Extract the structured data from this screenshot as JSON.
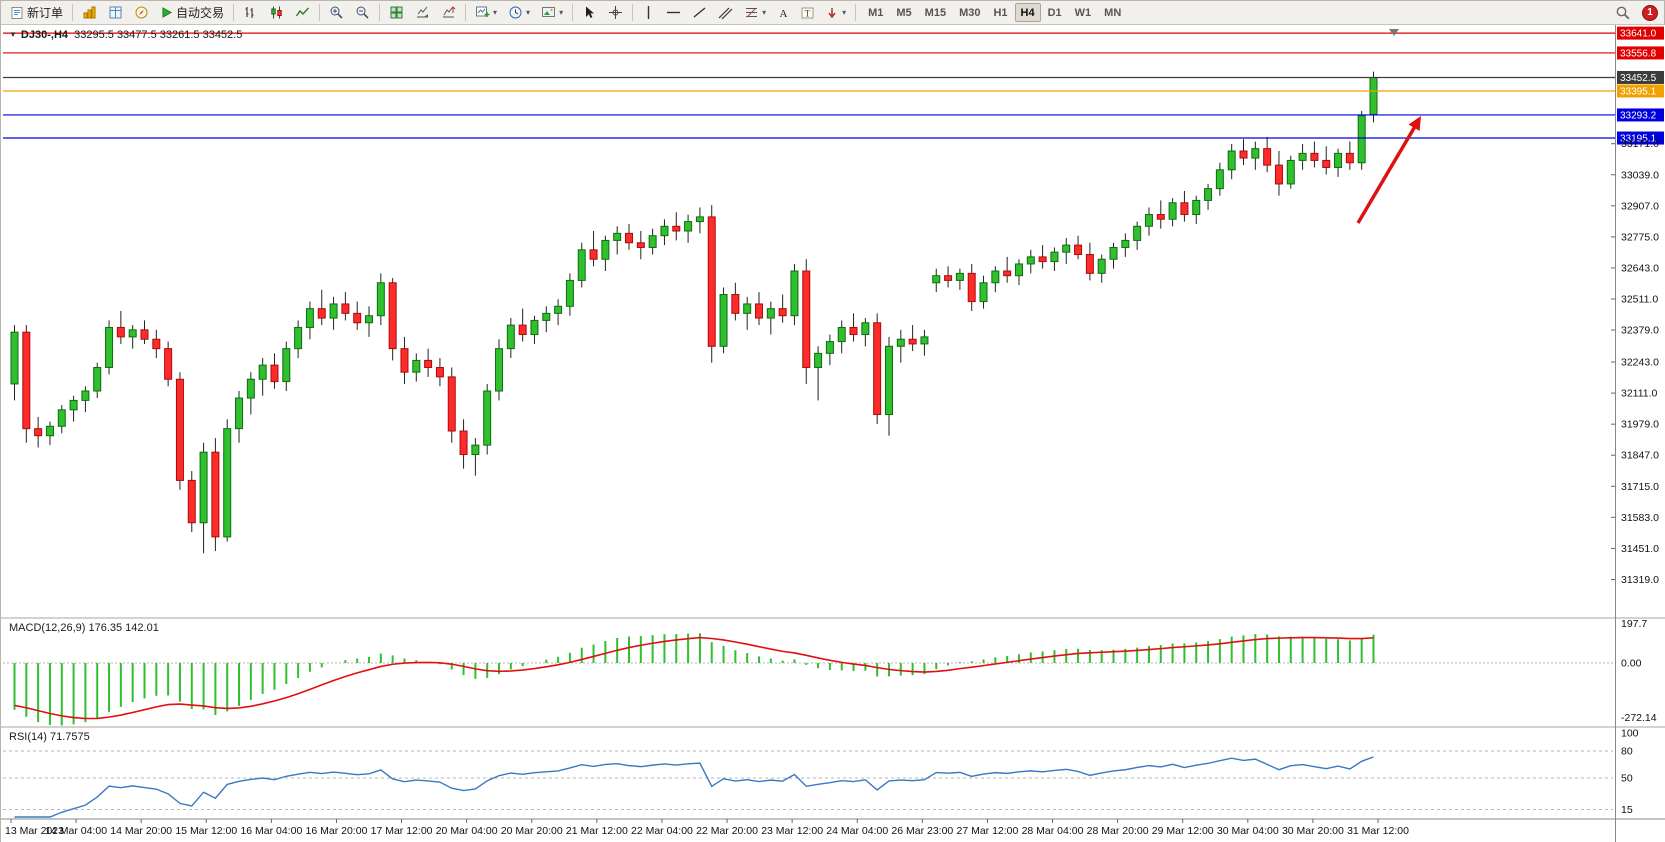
{
  "toolbar": {
    "new_order": "新订单",
    "autotrading": "自动交易",
    "timeframes": [
      "M1",
      "M5",
      "M15",
      "M30",
      "H1",
      "H4",
      "D1",
      "W1",
      "MN"
    ],
    "active_timeframe": "H4",
    "notification_count": "1"
  },
  "chart": {
    "symbol_period": "DJ30-,H4",
    "ohlc": "33295.5 33477.5 33261.5 33452.5",
    "price_axis_ticks": [
      "33171.0",
      "33039.0",
      "32907.0",
      "32775.0",
      "32643.0",
      "32511.0",
      "32379.0",
      "32243.0",
      "32111.0",
      "31979.0",
      "31847.0",
      "31715.0",
      "31583.0",
      "31451.0",
      "31319.0"
    ],
    "levels": [
      {
        "price": 33641.0,
        "label": "33641.0",
        "color": "#e00000",
        "kind": "resistance-line"
      },
      {
        "price": 33556.8,
        "label": "33556.8",
        "color": "#e00000",
        "kind": "resistance-line"
      },
      {
        "price": 33452.5,
        "label": "33452.5",
        "color": "#3c3c3c",
        "kind": "bid-line"
      },
      {
        "price": 33395.1,
        "label": "33395.1",
        "color": "#f0a000",
        "kind": "horizontal-line"
      },
      {
        "price": 33293.2,
        "label": "33293.2",
        "color": "#0000dd",
        "kind": "horizontal-line"
      },
      {
        "price": 33195.1,
        "label": "33195.1",
        "color": "#0000dd",
        "kind": "horizontal-line"
      }
    ],
    "time_axis": [
      "13 Mar 2023",
      "14 Mar 04:00",
      "14 Mar 20:00",
      "15 Mar 12:00",
      "16 Mar 04:00",
      "16 Mar 20:00",
      "17 Mar 12:00",
      "20 Mar 04:00",
      "20 Mar 20:00",
      "21 Mar 12:00",
      "22 Mar 04:00",
      "22 Mar 20:00",
      "23 Mar 12:00",
      "24 Mar 04:00",
      "26 Mar 23:00",
      "27 Mar 12:00",
      "28 Mar 04:00",
      "28 Mar 20:00",
      "29 Mar 12:00",
      "30 Mar 04:00",
      "30 Mar 20:00",
      "31 Mar 12:00"
    ]
  },
  "indicators": {
    "macd": {
      "label": "MACD(12,26,9) 176.35 142.01",
      "axis": [
        "197.7",
        "0.00",
        "-272.14"
      ],
      "values": {
        "macd": 176.35,
        "signal": 142.01
      }
    },
    "rsi": {
      "label": "RSI(14) 71.7575",
      "axis": [
        "100",
        "80",
        "50",
        "15"
      ],
      "value": 71.7575
    }
  },
  "annotation": {
    "arrow_color": "#dd1111"
  },
  "chart_data": {
    "type": "candlestick",
    "symbol": "DJ30-",
    "timeframe": "H4",
    "last_ohlc": {
      "open": 33295.5,
      "high": 33477.5,
      "low": 33261.5,
      "close": 33452.5
    },
    "price_line_levels": [
      33641.0,
      33556.8,
      33452.5,
      33395.1,
      33293.2,
      33195.1
    ],
    "colors": {
      "up": "#2fbf2f",
      "up_border": "#0d6e0d",
      "down": "#ff2a2a",
      "down_border": "#a80d0d",
      "wick": "#222222",
      "macd_histogram": "#2fbf2f",
      "macd_signal": "#e01010",
      "rsi_line": "#3b78c3"
    },
    "candles": [
      [
        32150,
        32400,
        32080,
        32370
      ],
      [
        32370,
        32400,
        31900,
        31960
      ],
      [
        31960,
        32010,
        31880,
        31930
      ],
      [
        31930,
        31990,
        31890,
        31970
      ],
      [
        31970,
        32060,
        31940,
        32040
      ],
      [
        32040,
        32100,
        31990,
        32080
      ],
      [
        32080,
        32140,
        32030,
        32120
      ],
      [
        32120,
        32240,
        32090,
        32220
      ],
      [
        32220,
        32420,
        32190,
        32390
      ],
      [
        32390,
        32460,
        32320,
        32350
      ],
      [
        32350,
        32400,
        32300,
        32380
      ],
      [
        32380,
        32420,
        32320,
        32340
      ],
      [
        32340,
        32380,
        32260,
        32300
      ],
      [
        32300,
        32330,
        32140,
        32170
      ],
      [
        32170,
        32200,
        31700,
        31740
      ],
      [
        31740,
        31780,
        31520,
        31560
      ],
      [
        31560,
        31900,
        31430,
        31860
      ],
      [
        31860,
        31920,
        31440,
        31500
      ],
      [
        31500,
        32000,
        31480,
        31960
      ],
      [
        31960,
        32120,
        31900,
        32090
      ],
      [
        32090,
        32200,
        32020,
        32170
      ],
      [
        32170,
        32260,
        32100,
        32230
      ],
      [
        32230,
        32280,
        32130,
        32160
      ],
      [
        32160,
        32330,
        32120,
        32300
      ],
      [
        32300,
        32420,
        32260,
        32390
      ],
      [
        32390,
        32500,
        32340,
        32470
      ],
      [
        32470,
        32550,
        32400,
        32430
      ],
      [
        32430,
        32520,
        32380,
        32490
      ],
      [
        32490,
        32540,
        32420,
        32450
      ],
      [
        32450,
        32500,
        32380,
        32410
      ],
      [
        32410,
        32480,
        32350,
        32440
      ],
      [
        32440,
        32620,
        32400,
        32580
      ],
      [
        32580,
        32600,
        32250,
        32300
      ],
      [
        32300,
        32350,
        32150,
        32200
      ],
      [
        32200,
        32280,
        32160,
        32250
      ],
      [
        32250,
        32300,
        32180,
        32220
      ],
      [
        32220,
        32260,
        32140,
        32180
      ],
      [
        32180,
        32220,
        31900,
        31950
      ],
      [
        31950,
        32000,
        31790,
        31850
      ],
      [
        31850,
        31920,
        31760,
        31890
      ],
      [
        31890,
        32150,
        31850,
        32120
      ],
      [
        32120,
        32340,
        32080,
        32300
      ],
      [
        32300,
        32430,
        32260,
        32400
      ],
      [
        32400,
        32470,
        32330,
        32360
      ],
      [
        32360,
        32440,
        32320,
        32420
      ],
      [
        32420,
        32480,
        32370,
        32450
      ],
      [
        32450,
        32510,
        32400,
        32480
      ],
      [
        32480,
        32620,
        32440,
        32590
      ],
      [
        32590,
        32750,
        32560,
        32720
      ],
      [
        32720,
        32800,
        32650,
        32680
      ],
      [
        32680,
        32780,
        32630,
        32760
      ],
      [
        32760,
        32820,
        32700,
        32790
      ],
      [
        32790,
        32830,
        32720,
        32750
      ],
      [
        32750,
        32800,
        32680,
        32730
      ],
      [
        32730,
        32810,
        32700,
        32780
      ],
      [
        32780,
        32850,
        32740,
        32820
      ],
      [
        32820,
        32880,
        32760,
        32800
      ],
      [
        32800,
        32870,
        32750,
        32840
      ],
      [
        32840,
        32900,
        32790,
        32860
      ],
      [
        32860,
        32910,
        32240,
        32310
      ],
      [
        32310,
        32560,
        32280,
        32530
      ],
      [
        32530,
        32580,
        32420,
        32450
      ],
      [
        32450,
        32520,
        32380,
        32490
      ],
      [
        32490,
        32540,
        32400,
        32430
      ],
      [
        32430,
        32500,
        32360,
        32470
      ],
      [
        32470,
        32530,
        32410,
        32440
      ],
      [
        32440,
        32660,
        32400,
        32630
      ],
      [
        32630,
        32680,
        32150,
        32220
      ],
      [
        32220,
        32310,
        32080,
        32280
      ],
      [
        32280,
        32360,
        32230,
        32330
      ],
      [
        32330,
        32420,
        32280,
        32390
      ],
      [
        32390,
        32450,
        32330,
        32360
      ],
      [
        32360,
        32430,
        32310,
        32410
      ],
      [
        32410,
        32450,
        31980,
        32020
      ],
      [
        32020,
        32350,
        31930,
        32310
      ],
      [
        32310,
        32380,
        32240,
        32340
      ],
      [
        32340,
        32400,
        32290,
        32320
      ],
      [
        32320,
        32380,
        32270,
        32350
      ],
      [
        32580,
        32640,
        32540,
        32610
      ],
      [
        32610,
        32650,
        32560,
        32590
      ],
      [
        32590,
        32640,
        32550,
        32620
      ],
      [
        32620,
        32660,
        32460,
        32500
      ],
      [
        32500,
        32610,
        32470,
        32580
      ],
      [
        32580,
        32650,
        32540,
        32630
      ],
      [
        32630,
        32690,
        32580,
        32610
      ],
      [
        32610,
        32680,
        32570,
        32660
      ],
      [
        32660,
        32720,
        32620,
        32690
      ],
      [
        32690,
        32740,
        32640,
        32670
      ],
      [
        32670,
        32730,
        32630,
        32710
      ],
      [
        32710,
        32770,
        32660,
        32740
      ],
      [
        32740,
        32780,
        32680,
        32700
      ],
      [
        32700,
        32750,
        32590,
        32620
      ],
      [
        32620,
        32700,
        32580,
        32680
      ],
      [
        32680,
        32750,
        32640,
        32730
      ],
      [
        32730,
        32790,
        32690,
        32760
      ],
      [
        32760,
        32840,
        32720,
        32820
      ],
      [
        32820,
        32900,
        32780,
        32870
      ],
      [
        32870,
        32930,
        32810,
        32850
      ],
      [
        32850,
        32940,
        32820,
        32920
      ],
      [
        32920,
        32970,
        32840,
        32870
      ],
      [
        32870,
        32950,
        32830,
        32930
      ],
      [
        32930,
        33000,
        32890,
        32980
      ],
      [
        32980,
        33090,
        32950,
        33060
      ],
      [
        33060,
        33170,
        33020,
        33140
      ],
      [
        33140,
        33190,
        33080,
        33110
      ],
      [
        33110,
        33180,
        33060,
        33150
      ],
      [
        33150,
        33200,
        33050,
        33080
      ],
      [
        33080,
        33140,
        32950,
        33000
      ],
      [
        33000,
        33120,
        32980,
        33100
      ],
      [
        33100,
        33170,
        33060,
        33130
      ],
      [
        33130,
        33180,
        33070,
        33100
      ],
      [
        33100,
        33160,
        33040,
        33070
      ],
      [
        33070,
        33150,
        33030,
        33130
      ],
      [
        33130,
        33180,
        33060,
        33090
      ],
      [
        33090,
        33310,
        33060,
        33290
      ],
      [
        33295.5,
        33477.5,
        33261.5,
        33452.5
      ]
    ]
  }
}
